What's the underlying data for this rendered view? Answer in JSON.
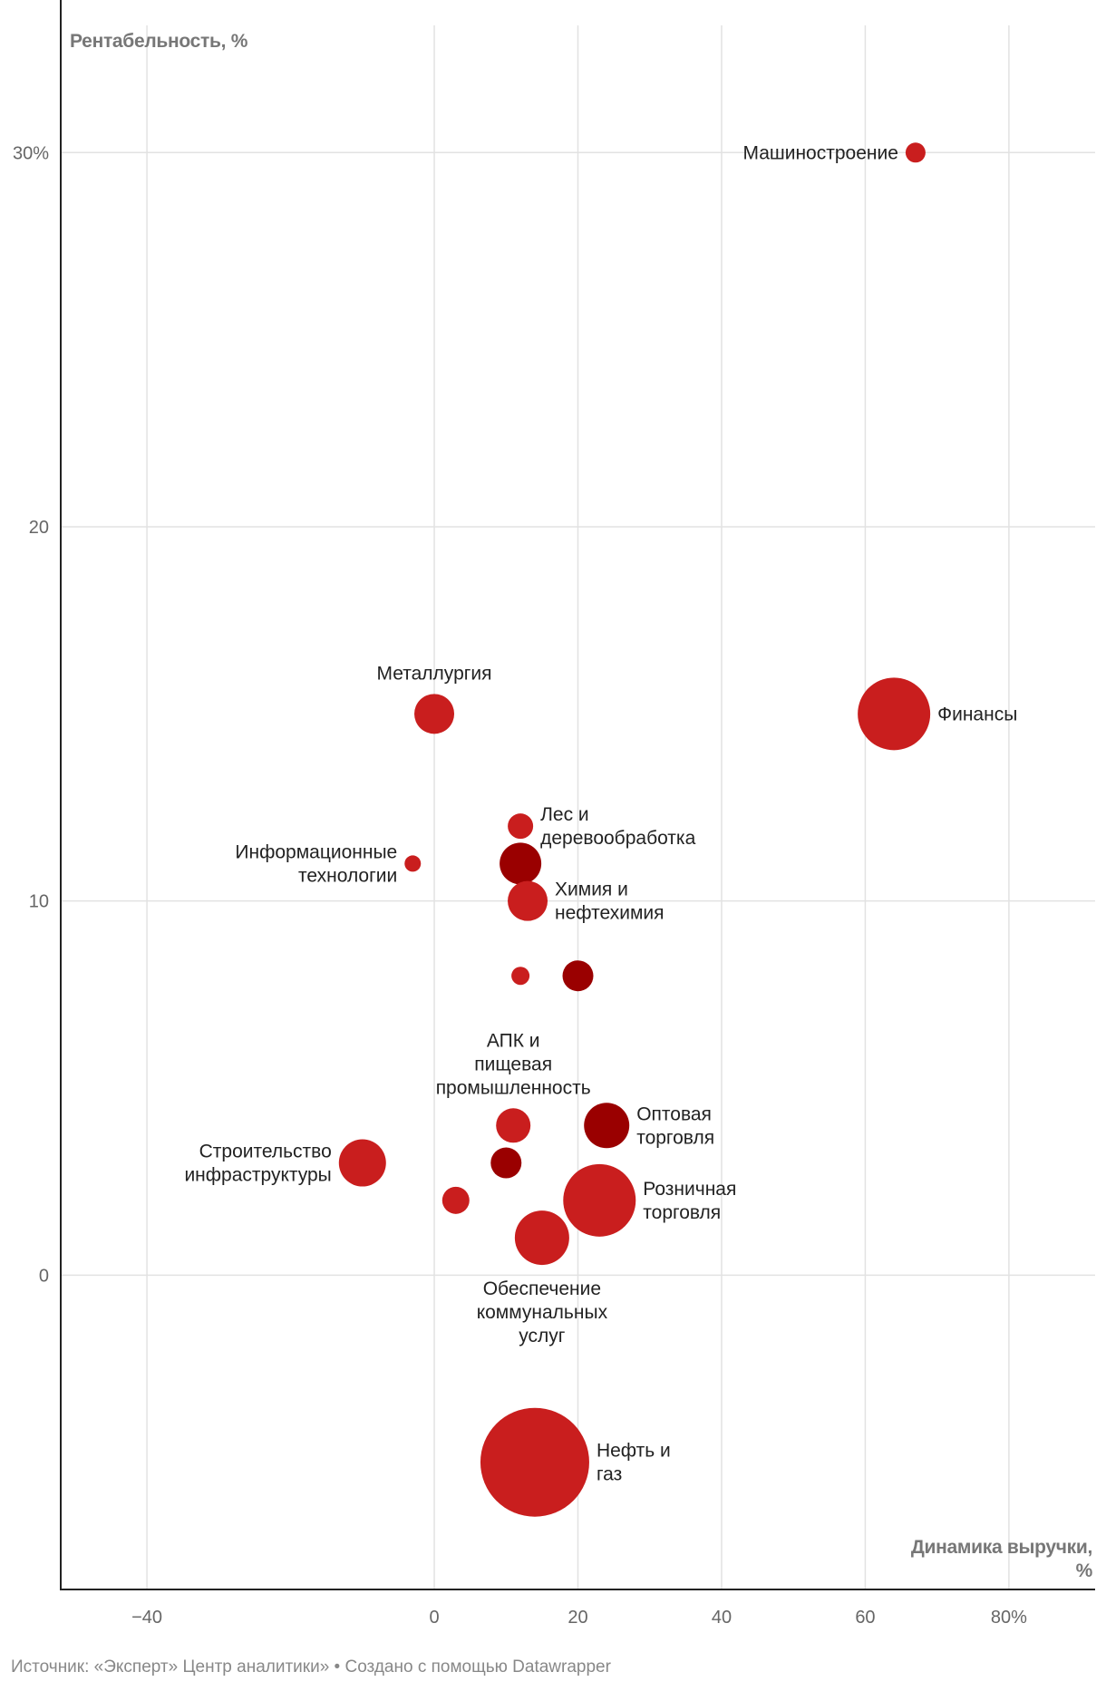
{
  "chart_data": {
    "type": "scatter",
    "ylabel": "Рентабельность, %",
    "xlabel_lines": [
      "Динамика выручки,",
      "%"
    ],
    "xlim": [
      -52,
      92
    ],
    "ylim": [
      -8.4,
      33.4
    ],
    "x_ticks": [
      {
        "value": -40,
        "label": "−40"
      },
      {
        "value": 0,
        "label": "0"
      },
      {
        "value": 20,
        "label": "20"
      },
      {
        "value": 40,
        "label": "40"
      },
      {
        "value": 60,
        "label": "60"
      },
      {
        "value": 80,
        "label": "80%"
      }
    ],
    "y_ticks": [
      {
        "value": 30,
        "label": "30%"
      },
      {
        "value": 20,
        "label": "20"
      },
      {
        "value": 10,
        "label": "10"
      },
      {
        "value": 0,
        "label": "0"
      }
    ],
    "grid": true,
    "colors": {
      "primary": "#c91e1e",
      "dark": "#9a0000",
      "grid": "#e2e2e2",
      "axis": "#222222"
    },
    "points": [
      {
        "label_lines": [
          "Нефть и",
          "газ"
        ],
        "x": 14,
        "y": -5,
        "r": 60,
        "color": "primary",
        "label_pos": "right"
      },
      {
        "label_lines": [
          "Финансы"
        ],
        "x": 64,
        "y": 15,
        "r": 40,
        "color": "primary",
        "label_pos": "right"
      },
      {
        "label_lines": [
          "Розничная",
          "торговля"
        ],
        "x": 23,
        "y": 2,
        "r": 40,
        "color": "primary",
        "label_pos": "right"
      },
      {
        "label_lines": [
          "Обеспечение",
          "коммунальных",
          "услуг"
        ],
        "x": 15,
        "y": 1,
        "r": 30,
        "color": "primary",
        "label_pos": "below"
      },
      {
        "label_lines": [
          "Строительство",
          "инфраструктуры"
        ],
        "x": -10,
        "y": 3,
        "r": 26,
        "color": "primary",
        "label_pos": "left"
      },
      {
        "label_lines": [
          "Металлургия"
        ],
        "x": 0,
        "y": 15,
        "r": 22,
        "color": "primary",
        "label_pos": "above"
      },
      {
        "label_lines": [
          "Химия и",
          "нефтехимия"
        ],
        "x": 13,
        "y": 10,
        "r": 22,
        "color": "primary",
        "label_pos": "right"
      },
      {
        "label_lines": [
          "АПК и",
          "пищевая",
          "промышленность"
        ],
        "x": 11,
        "y": 4,
        "r": 19,
        "color": "primary",
        "label_pos": "above"
      },
      {
        "label_lines": [],
        "x": 3,
        "y": 2,
        "r": 15,
        "color": "primary",
        "label_pos": "none"
      },
      {
        "label_lines": [
          "Оптовая",
          "торговля"
        ],
        "x": 24,
        "y": 4,
        "r": 25,
        "color": "dark",
        "label_pos": "right"
      },
      {
        "label_lines": [
          "Лес и",
          "деревообработка"
        ],
        "x": 12,
        "y": 12,
        "r": 14,
        "color": "primary",
        "label_pos": "right"
      },
      {
        "label_lines": [],
        "x": 12,
        "y": 11,
        "r": 23,
        "color": "dark",
        "label_pos": "none"
      },
      {
        "label_lines": [],
        "x": 20,
        "y": 8,
        "r": 17,
        "color": "dark",
        "label_pos": "none"
      },
      {
        "label_lines": [],
        "x": 10,
        "y": 3,
        "r": 17,
        "color": "dark",
        "label_pos": "none"
      },
      {
        "label_lines": [],
        "x": 12,
        "y": 8,
        "r": 10,
        "color": "primary",
        "label_pos": "none"
      },
      {
        "label_lines": [
          "Информационные",
          "технологии"
        ],
        "x": -3,
        "y": 11,
        "r": 9,
        "color": "primary",
        "label_pos": "left"
      },
      {
        "label_lines": [
          "Машиностроение"
        ],
        "x": 67,
        "y": 30,
        "r": 11,
        "color": "primary",
        "label_pos": "left"
      }
    ]
  },
  "footer": "Источник: «Эксперт» Центр аналитики» • Создано с помощью Datawrapper"
}
